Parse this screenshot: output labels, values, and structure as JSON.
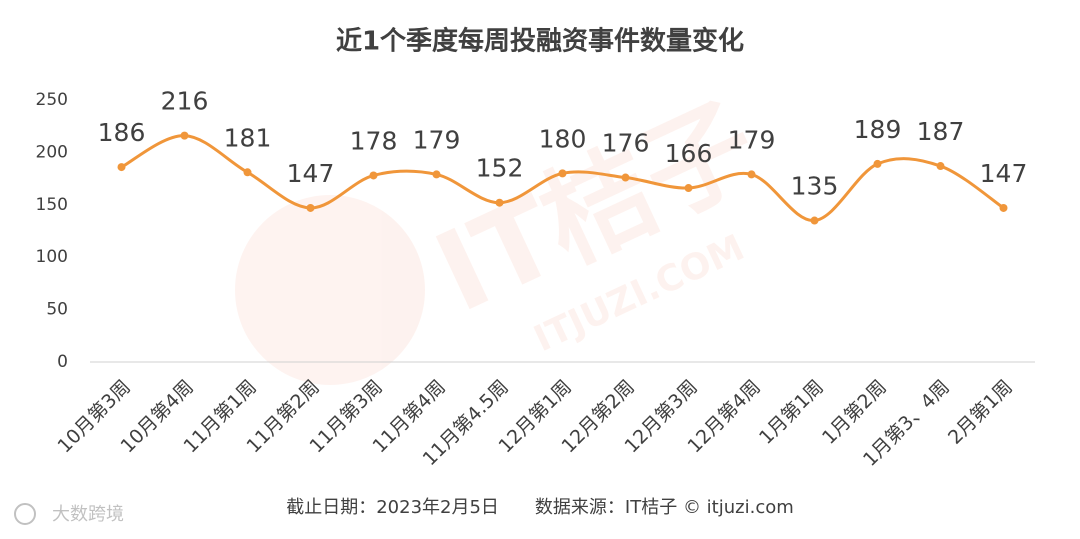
{
  "chart_data": {
    "type": "line",
    "title": "近1个季度每周投融资事件数量变化",
    "categories": [
      "10月第3周",
      "10月第4周",
      "11月第1周",
      "11月第2周",
      "11月第3周",
      "11月第4周",
      "11月第4.5周",
      "12月第1周",
      "12月第2周",
      "12月第3周",
      "12月第4周",
      "1月第1周",
      "1月第2周",
      "1月第3、4周",
      "2月第1周"
    ],
    "values": [
      186,
      216,
      181,
      147,
      178,
      179,
      152,
      180,
      176,
      166,
      179,
      135,
      189,
      187,
      147
    ],
    "color": "#f0963a",
    "smooth": true,
    "ylim": [
      0,
      250
    ],
    "yticks": [
      0,
      50,
      100,
      150,
      200,
      250
    ],
    "grid": false,
    "footer": "截止日期：2023年2月5日　　数据来源：IT桔子 © itjuzi.com",
    "watermark": [
      "IT桔子",
      "ITJUZI.COM"
    ],
    "logo": "大数跨境"
  }
}
